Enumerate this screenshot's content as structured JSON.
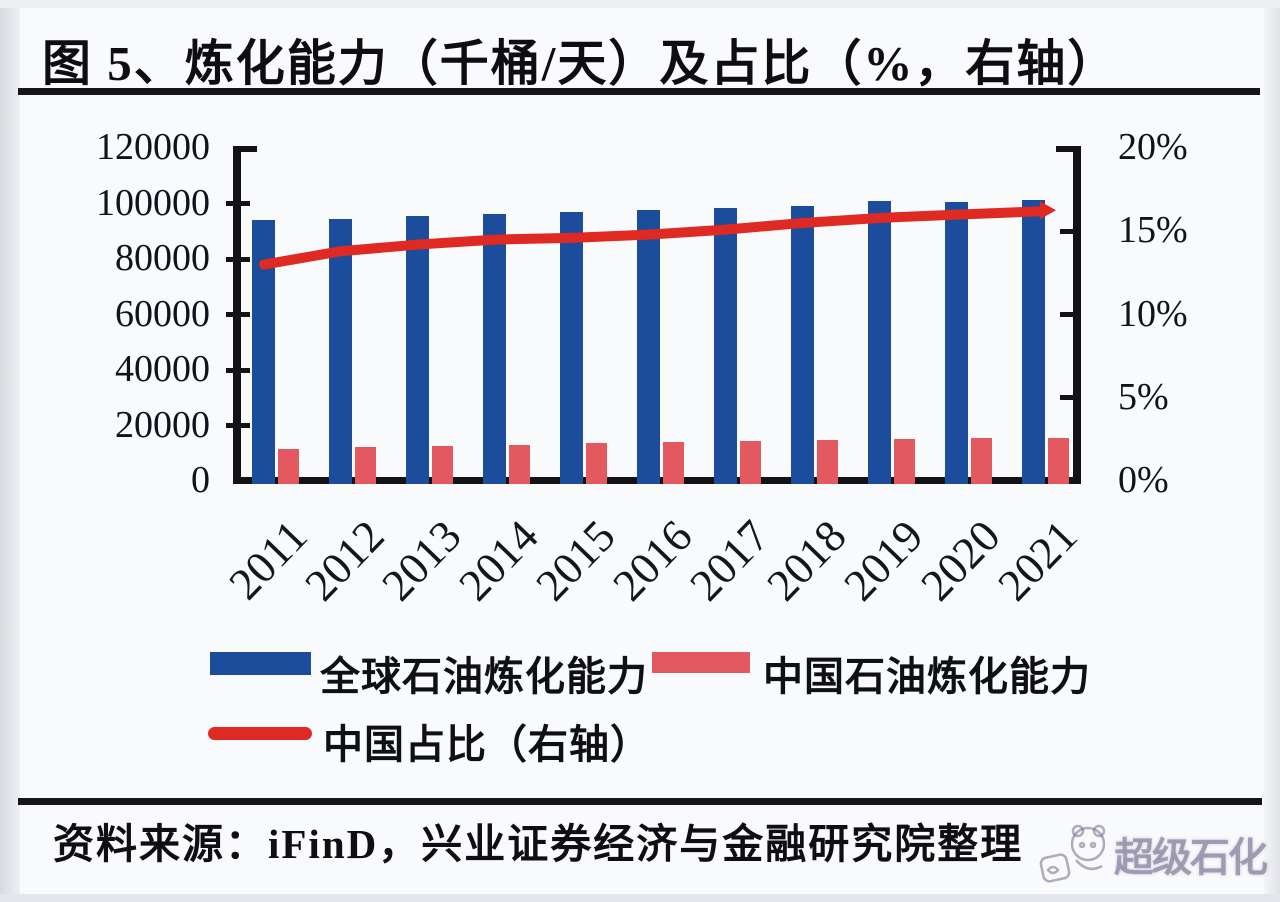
{
  "figure": {
    "number_and_title": "图 5、炼化能力（千桶/天）及占比（%，右轴）"
  },
  "source": {
    "text": "资料来源：iFinD，兴业证券经济与金融研究院整理"
  },
  "watermark": {
    "text": "超级石化"
  },
  "colors": {
    "global_bar": "#1c4d9d",
    "china_bar": "#e4595f",
    "share_line": "#de2a22",
    "axis": "#121217"
  },
  "chart_data": {
    "type": "bar",
    "title": "炼化能力（千桶/天）及占比（%，右轴）",
    "categories": [
      "2011",
      "2012",
      "2013",
      "2014",
      "2015",
      "2016",
      "2017",
      "2018",
      "2019",
      "2020",
      "2021"
    ],
    "series": [
      {
        "name": "全球石油炼化能力",
        "type": "bar",
        "axis": "left",
        "color": "#1c4d9d",
        "values": [
          93900,
          94500,
          95400,
          96300,
          97100,
          97800,
          98300,
          99200,
          101000,
          100700,
          101300
        ]
      },
      {
        "name": "中国石油炼化能力",
        "type": "bar",
        "axis": "left",
        "color": "#e4595f",
        "values": [
          11700,
          12200,
          12700,
          13100,
          13600,
          14000,
          14500,
          14900,
          15200,
          15400,
          15600
        ]
      },
      {
        "name": "中国占比（右轴）",
        "type": "line",
        "axis": "right",
        "color": "#de2a22",
        "values": [
          13.0,
          13.8,
          14.2,
          14.5,
          14.6,
          14.8,
          15.1,
          15.5,
          15.8,
          16.0,
          16.2
        ]
      }
    ],
    "left_axis": {
      "min": 0,
      "max": 120000,
      "tick_labels": [
        "120000",
        "100000",
        "80000",
        "60000",
        "40000",
        "20000",
        "0"
      ]
    },
    "right_axis": {
      "min": 0,
      "max": 20,
      "unit": "%",
      "tick_labels": [
        "20%",
        "15%",
        "10%",
        "5%",
        "0%"
      ]
    },
    "grid": false,
    "legend_position": "bottom"
  }
}
